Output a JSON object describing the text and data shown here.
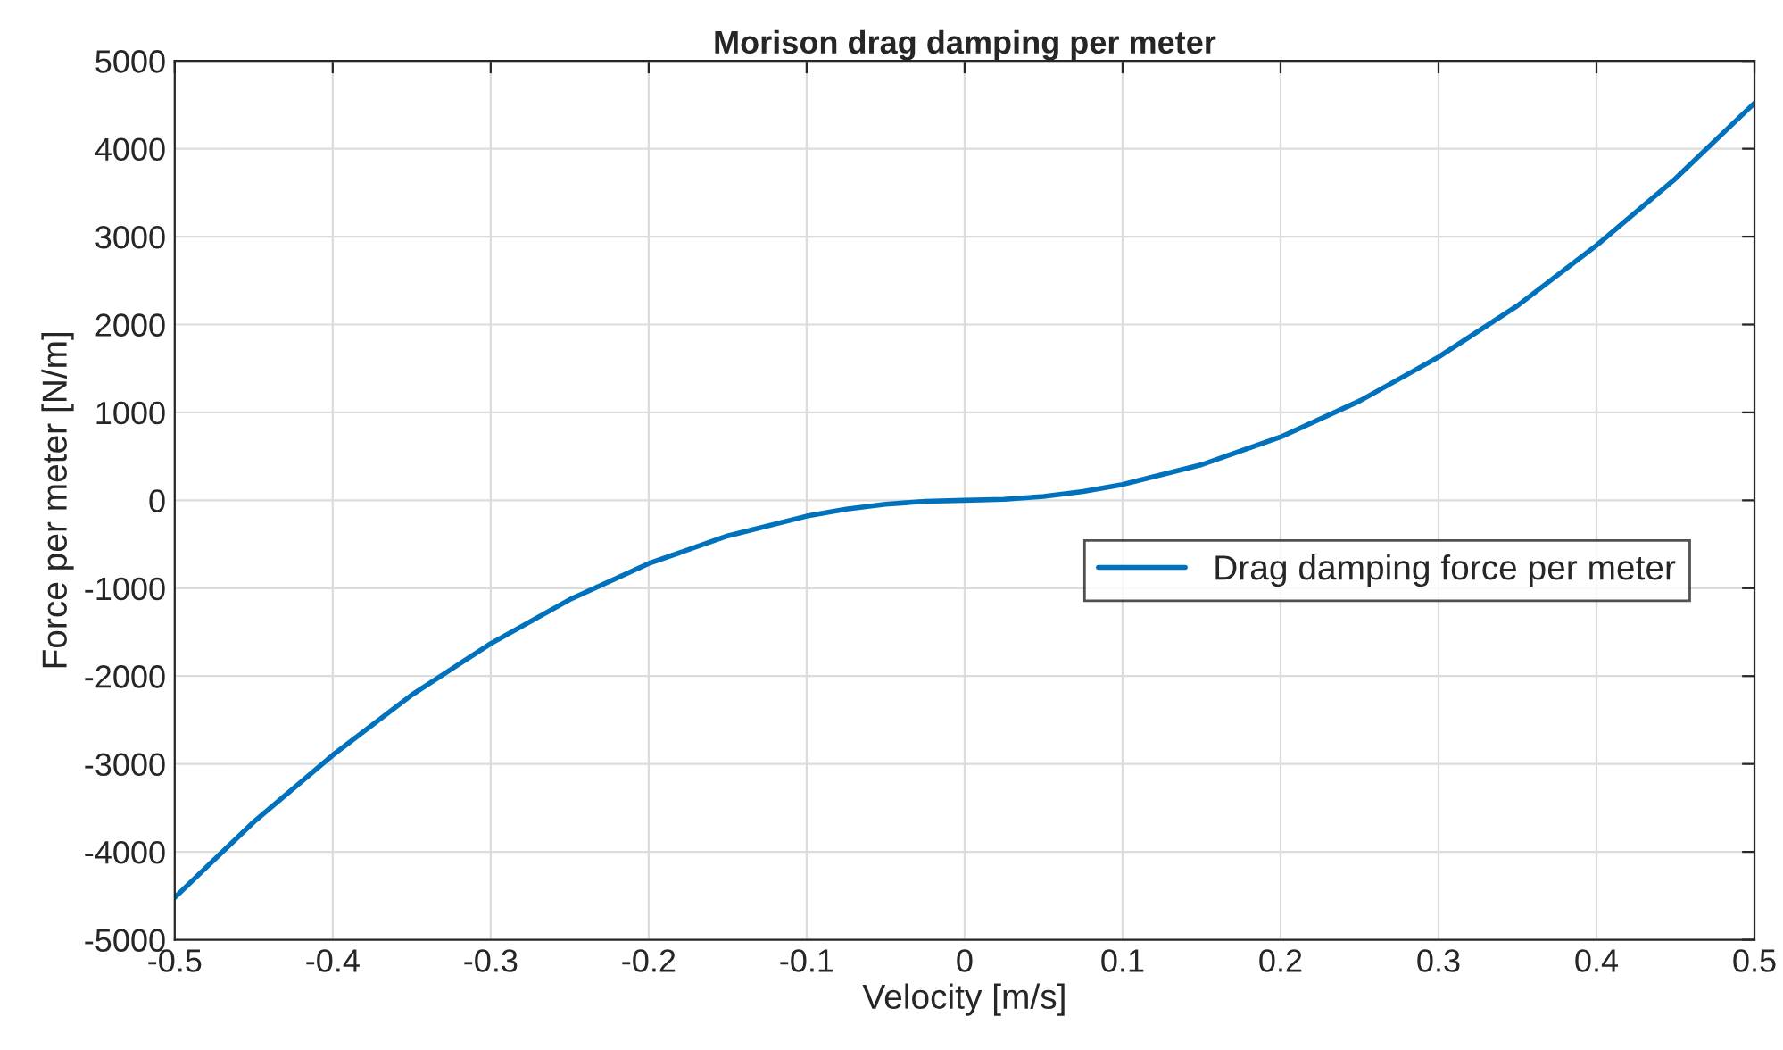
{
  "chart_data": {
    "type": "line",
    "title": "Morison drag damping per meter",
    "xlabel": "Velocity [m/s]",
    "ylabel": "Force per meter [N/m]",
    "series": [
      {
        "name": "Drag damping force per meter",
        "color": "#0072bd",
        "x": [
          -0.5,
          -0.45,
          -0.4,
          -0.35,
          -0.3,
          -0.25,
          -0.2,
          -0.15,
          -0.1,
          -0.075,
          -0.05,
          -0.025,
          0,
          0.025,
          0.05,
          0.075,
          0.1,
          0.15,
          0.2,
          0.25,
          0.3,
          0.35,
          0.4,
          0.45,
          0.5
        ],
        "values": [
          -4520,
          -3660,
          -2900,
          -2215,
          -1630,
          -1130,
          -720,
          -405,
          -180,
          -100,
          -45,
          -11,
          0,
          11,
          45,
          100,
          180,
          405,
          720,
          1130,
          1630,
          2215,
          2900,
          3660,
          4520
        ]
      }
    ],
    "xlim": [
      -0.5,
      0.5
    ],
    "xticks": [
      -0.5,
      -0.4,
      -0.3,
      -0.2,
      -0.1,
      0,
      0.1,
      0.2,
      0.3,
      0.4,
      0.5
    ],
    "ylim": [
      -5000,
      5000
    ],
    "yticks": [
      -5000,
      -4000,
      -3000,
      -2000,
      -1000,
      0,
      1000,
      2000,
      3000,
      4000,
      5000
    ],
    "grid": true,
    "legend": "right",
    "marker": "none",
    "line_style": "solid"
  }
}
